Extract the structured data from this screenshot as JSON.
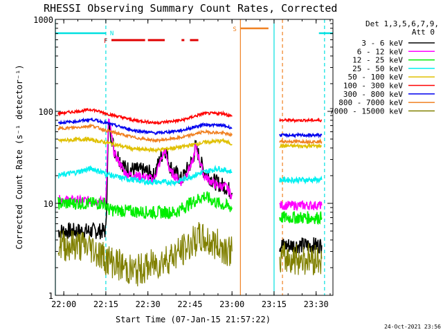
{
  "chart_data": {
    "type": "line",
    "title": "RHESSI Observing Summary Count Rates, Corrected",
    "xlabel": "Start Time (07-Jan-15 21:57:22)",
    "ylabel": "Corrected Count Rate (s⁻¹ detector⁻¹)",
    "y_scale": "log",
    "ylim": [
      1,
      1000
    ],
    "xlim": [
      "21:57",
      "23:36"
    ],
    "x_ticks": [
      "22:00",
      "22:15",
      "22:30",
      "22:45",
      "23:00",
      "23:15",
      "23:30"
    ],
    "y_ticks": [
      "1",
      "10",
      "100",
      "1000"
    ],
    "grid": false,
    "legend_position": "right",
    "detector_info": [
      "Det 1,3,5,6,7,9,",
      "Att 0"
    ],
    "timestamp": "24-Oct-2021 23:56",
    "flags": [
      {
        "label": "N",
        "color": "#00e0e0",
        "segments": [
          [
            "21:57",
            "22:15"
          ],
          [
            "23:31",
            "23:36"
          ]
        ]
      },
      {
        "label": "F",
        "color": "#e00000",
        "segments": [
          [
            "22:17",
            "22:29"
          ],
          [
            "22:30",
            "22:36"
          ],
          [
            "22:42",
            "22:43"
          ],
          [
            "22:45",
            "22:48"
          ]
        ]
      },
      {
        "label": "S",
        "color": "#f08020",
        "segments": [
          [
            "23:03",
            "23:13"
          ]
        ]
      }
    ],
    "event_lines": [
      {
        "time": "21:57",
        "color": "#00e0e0",
        "style": "solid"
      },
      {
        "time": "22:15",
        "color": "#00e0e0",
        "style": "dashed"
      },
      {
        "time": "23:03",
        "color": "#f08020",
        "style": "solid"
      },
      {
        "time": "23:15",
        "color": "#00e0e0",
        "style": "solid"
      },
      {
        "time": "23:18",
        "color": "#f08020",
        "style": "dashed"
      },
      {
        "time": "23:33",
        "color": "#00e0e0",
        "style": "dashed"
      }
    ],
    "gaps": [
      [
        "23:01",
        "23:17"
      ]
    ],
    "series": [
      {
        "name": "3 - 6 keV",
        "color": "#000000",
        "segments": [
          [
            [
              "21:58",
              5.0
            ],
            [
              "22:15",
              5.0
            ],
            [
              "22:16",
              75
            ],
            [
              "22:18",
              38
            ],
            [
              "22:22",
              24
            ],
            [
              "22:26",
              23
            ],
            [
              "22:30",
              22
            ],
            [
              "22:32",
              20
            ],
            [
              "22:36",
              40
            ],
            [
              "22:38",
              25
            ],
            [
              "22:42",
              18
            ],
            [
              "22:46",
              30
            ],
            [
              "22:47",
              42
            ],
            [
              "22:50",
              22
            ],
            [
              "22:54",
              17
            ],
            [
              "22:58",
              15
            ],
            [
              "23:00",
              13
            ]
          ],
          [
            [
              "23:17",
              3.5
            ],
            [
              "23:32",
              3.5
            ]
          ]
        ]
      },
      {
        "name": "6 - 12 keV",
        "color": "#ff00ff",
        "segments": [
          [
            [
              "21:58",
              11
            ],
            [
              "22:15",
              10.5
            ],
            [
              "22:16",
              85
            ],
            [
              "22:18",
              35
            ],
            [
              "22:22",
              21
            ],
            [
              "22:26",
              20
            ],
            [
              "22:30",
              19
            ],
            [
              "22:32",
              18
            ],
            [
              "22:36",
              38
            ],
            [
              "22:38",
              22
            ],
            [
              "22:42",
              17
            ],
            [
              "22:46",
              28
            ],
            [
              "22:47",
              42
            ],
            [
              "22:50",
              20
            ],
            [
              "22:54",
              16
            ],
            [
              "22:58",
              15
            ],
            [
              "23:00",
              12
            ]
          ],
          [
            [
              "23:17",
              9.5
            ],
            [
              "23:32",
              9.5
            ]
          ]
        ]
      },
      {
        "name": "12 - 25 keV",
        "color": "#00ee00",
        "segments": [
          [
            [
              "21:58",
              10
            ],
            [
              "22:07",
              10
            ],
            [
              "22:15",
              10
            ],
            [
              "22:16",
              8.5
            ],
            [
              "22:30",
              8
            ],
            [
              "22:40",
              8
            ],
            [
              "22:45",
              10
            ],
            [
              "22:50",
              12
            ],
            [
              "22:55",
              10
            ],
            [
              "23:00",
              9
            ]
          ],
          [
            [
              "23:17",
              7
            ],
            [
              "23:32",
              7
            ]
          ]
        ]
      },
      {
        "name": "25 - 50 keV",
        "color": "#00f0f0",
        "segments": [
          [
            [
              "21:58",
              20
            ],
            [
              "22:05",
              22
            ],
            [
              "22:10",
              24
            ],
            [
              "22:15",
              21
            ],
            [
              "22:20",
              19
            ],
            [
              "22:30",
              17
            ],
            [
              "22:40",
              17
            ],
            [
              "22:48",
              21
            ],
            [
              "22:55",
              24
            ],
            [
              "23:00",
              22
            ]
          ],
          [
            [
              "23:17",
              18
            ],
            [
              "23:32",
              18
            ]
          ]
        ]
      },
      {
        "name": "50 - 100 keV",
        "color": "#e0c000",
        "segments": [
          [
            [
              "21:58",
              48
            ],
            [
              "22:08",
              50
            ],
            [
              "22:15",
              46
            ],
            [
              "22:25",
              39
            ],
            [
              "22:33",
              38
            ],
            [
              "22:42",
              41
            ],
            [
              "22:50",
              46
            ],
            [
              "22:57",
              48
            ],
            [
              "23:00",
              44
            ]
          ],
          [
            [
              "23:17",
              42
            ],
            [
              "23:32",
              42
            ]
          ]
        ]
      },
      {
        "name": "100 - 300 keV",
        "color": "#ff0000",
        "segments": [
          [
            [
              "21:58",
              95
            ],
            [
              "22:05",
              100
            ],
            [
              "22:10",
              105
            ],
            [
              "22:15",
              95
            ],
            [
              "22:25",
              80
            ],
            [
              "22:33",
              75
            ],
            [
              "22:42",
              80
            ],
            [
              "22:50",
              95
            ],
            [
              "22:57",
              95
            ],
            [
              "23:00",
              88
            ]
          ],
          [
            [
              "23:17",
              80
            ],
            [
              "23:32",
              80
            ]
          ]
        ]
      },
      {
        "name": "300 - 800 keV",
        "color": "#0000ee",
        "segments": [
          [
            [
              "21:58",
              75
            ],
            [
              "22:05",
              78
            ],
            [
              "22:10",
              82
            ],
            [
              "22:15",
              75
            ],
            [
              "22:25",
              62
            ],
            [
              "22:33",
              58
            ],
            [
              "22:42",
              62
            ],
            [
              "22:50",
              72
            ],
            [
              "22:57",
              70
            ],
            [
              "23:00",
              66
            ]
          ],
          [
            [
              "23:17",
              55
            ],
            [
              "23:32",
              55
            ]
          ]
        ]
      },
      {
        "name": "800 - 7000 keV",
        "color": "#f08020",
        "segments": [
          [
            [
              "21:58",
              65
            ],
            [
              "22:05",
              67
            ],
            [
              "22:10",
              70
            ],
            [
              "22:15",
              62
            ],
            [
              "22:25",
              52
            ],
            [
              "22:33",
              48
            ],
            [
              "22:42",
              52
            ],
            [
              "22:50",
              60
            ],
            [
              "22:57",
              58
            ],
            [
              "23:00",
              55
            ]
          ],
          [
            [
              "23:17",
              47
            ],
            [
              "23:32",
              47
            ]
          ]
        ]
      },
      {
        "name": "7000 - 15000 keV",
        "color": "#808000",
        "segments": [
          [
            [
              "21:58",
              3.5
            ],
            [
              "22:05",
              3.5
            ],
            [
              "22:10",
              3.3
            ],
            [
              "22:15",
              2.5
            ],
            [
              "22:25",
              1.8
            ],
            [
              "22:33",
              2.2
            ],
            [
              "22:42",
              3.0
            ],
            [
              "22:48",
              4.2
            ],
            [
              "22:55",
              3.5
            ],
            [
              "23:00",
              3.0
            ]
          ],
          [
            [
              "23:17",
              2.5
            ],
            [
              "23:32",
              2.5
            ]
          ]
        ]
      }
    ]
  }
}
